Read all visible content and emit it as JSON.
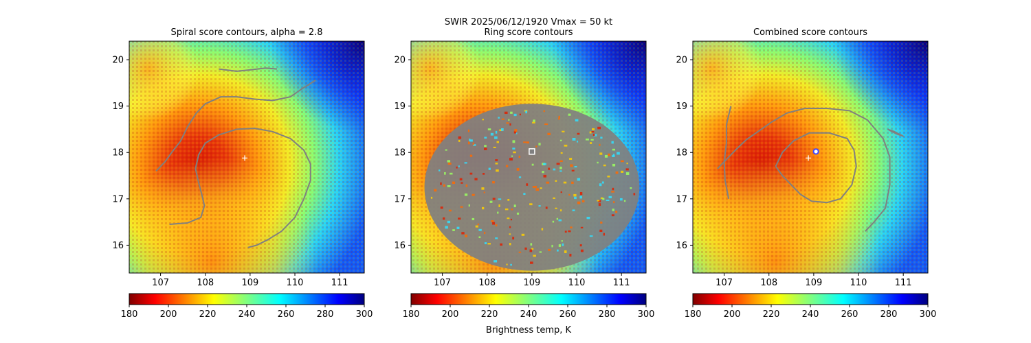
{
  "suptitle": "SWIR  2025/06/12/1920    Vmax = 50 kt",
  "colorbar_label": "Brightness temp, K",
  "colors": {
    "contour": "#808080",
    "center_marker": "#ffffff",
    "fix_marker": "#3f48ff",
    "ring_marker": "#ffffff"
  },
  "chart_data": [
    {
      "type": "heatmap",
      "title": "Spiral score contours, alpha =  2.8",
      "xlim": [
        106.3,
        111.55
      ],
      "ylim": [
        15.4,
        20.4
      ],
      "xticks": [
        107,
        108,
        109,
        110,
        111
      ],
      "yticks": [
        16,
        17,
        18,
        19,
        20
      ],
      "colorbar": {
        "range": [
          180,
          300
        ],
        "ticks": [
          180,
          200,
          220,
          240,
          260,
          280,
          300
        ],
        "cmap": "jet_r"
      },
      "markers": [
        {
          "kind": "plus",
          "lon": 108.88,
          "lat": 17.88
        }
      ],
      "contours": [
        [
          [
            106.9,
            17.6
          ],
          [
            107.1,
            17.8
          ],
          [
            107.25,
            18.0
          ],
          [
            107.45,
            18.25
          ],
          [
            107.6,
            18.55
          ],
          [
            107.8,
            18.85
          ],
          [
            108.0,
            19.05
          ],
          [
            108.35,
            19.2
          ],
          [
            108.7,
            19.2
          ],
          [
            109.1,
            19.15
          ],
          [
            109.5,
            19.12
          ],
          [
            109.9,
            19.2
          ],
          [
            110.2,
            19.4
          ],
          [
            110.45,
            19.55
          ],
          [
            110.3,
            19.45
          ]
        ],
        [
          [
            108.3,
            19.8
          ],
          [
            108.7,
            19.75
          ],
          [
            109.0,
            19.78
          ],
          [
            109.35,
            19.82
          ],
          [
            109.6,
            19.8
          ]
        ],
        [
          [
            107.2,
            16.45
          ],
          [
            107.6,
            16.48
          ],
          [
            107.9,
            16.6
          ],
          [
            107.98,
            16.85
          ],
          [
            107.92,
            17.1
          ],
          [
            107.85,
            17.35
          ],
          [
            107.78,
            17.65
          ],
          [
            107.85,
            17.95
          ],
          [
            108.0,
            18.2
          ],
          [
            108.3,
            18.38
          ],
          [
            108.7,
            18.5
          ],
          [
            109.1,
            18.52
          ],
          [
            109.5,
            18.45
          ],
          [
            109.9,
            18.3
          ],
          [
            110.2,
            18.05
          ],
          [
            110.35,
            17.75
          ],
          [
            110.35,
            17.4
          ],
          [
            110.2,
            17.0
          ],
          [
            110.0,
            16.6
          ],
          [
            109.7,
            16.3
          ],
          [
            109.4,
            16.12
          ],
          [
            109.15,
            16.0
          ],
          [
            108.95,
            15.95
          ]
        ]
      ]
    },
    {
      "type": "heatmap",
      "title": "Ring score contours",
      "xlim": [
        106.3,
        111.55
      ],
      "ylim": [
        15.4,
        20.4
      ],
      "xticks": [
        107,
        108,
        109,
        110,
        111
      ],
      "yticks": [
        16,
        17,
        18,
        19,
        20
      ],
      "colorbar": {
        "range": [
          180,
          300
        ],
        "ticks": [
          180,
          200,
          220,
          240,
          260,
          280,
          300
        ],
        "cmap": "jet_r"
      },
      "markers": [
        {
          "kind": "square",
          "lon": 109.0,
          "lat": 18.02
        }
      ],
      "ring_region": {
        "center": [
          109.0,
          17.25
        ],
        "radius_lon": 2.4,
        "radius_lat": 1.8
      }
    },
    {
      "type": "heatmap",
      "title": "Combined score contours",
      "xlim": [
        106.3,
        111.55
      ],
      "ylim": [
        15.4,
        20.4
      ],
      "xticks": [
        107,
        108,
        109,
        110,
        111
      ],
      "yticks": [
        16,
        17,
        18,
        19,
        20
      ],
      "colorbar": {
        "range": [
          180,
          300
        ],
        "ticks": [
          180,
          200,
          220,
          240,
          260,
          280,
          300
        ],
        "cmap": "jet_r"
      },
      "markers": [
        {
          "kind": "plus",
          "lon": 108.88,
          "lat": 17.88
        },
        {
          "kind": "circle",
          "lon": 109.05,
          "lat": 18.02
        }
      ],
      "contours": [
        [
          [
            106.85,
            17.65
          ],
          [
            107.05,
            17.85
          ],
          [
            107.25,
            18.05
          ],
          [
            107.5,
            18.28
          ],
          [
            107.8,
            18.48
          ],
          [
            108.05,
            18.65
          ],
          [
            108.4,
            18.85
          ],
          [
            108.8,
            18.95
          ],
          [
            109.3,
            18.95
          ],
          [
            109.8,
            18.9
          ],
          [
            110.2,
            18.7
          ],
          [
            110.55,
            18.3
          ],
          [
            110.7,
            17.9
          ],
          [
            110.7,
            17.3
          ],
          [
            110.6,
            16.8
          ],
          [
            110.35,
            16.5
          ],
          [
            110.15,
            16.3
          ]
        ],
        [
          [
            107.15,
            19.0
          ],
          [
            107.05,
            18.6
          ],
          [
            107.05,
            18.2
          ],
          [
            107.0,
            17.8
          ],
          [
            107.02,
            17.4
          ],
          [
            107.1,
            17.0
          ]
        ],
        [
          [
            108.15,
            17.7
          ],
          [
            108.3,
            18.0
          ],
          [
            108.55,
            18.25
          ],
          [
            108.9,
            18.42
          ],
          [
            109.35,
            18.42
          ],
          [
            109.75,
            18.3
          ],
          [
            109.9,
            18.05
          ],
          [
            109.95,
            17.7
          ],
          [
            109.85,
            17.3
          ],
          [
            109.6,
            17.0
          ],
          [
            109.3,
            16.92
          ],
          [
            108.95,
            16.95
          ],
          [
            108.7,
            17.1
          ],
          [
            108.5,
            17.3
          ],
          [
            108.3,
            17.5
          ],
          [
            108.15,
            17.7
          ]
        ],
        [
          [
            110.65,
            18.5
          ],
          [
            110.8,
            18.45
          ],
          [
            111.0,
            18.35
          ],
          [
            110.85,
            18.4
          ],
          [
            110.65,
            18.5
          ]
        ]
      ]
    }
  ]
}
